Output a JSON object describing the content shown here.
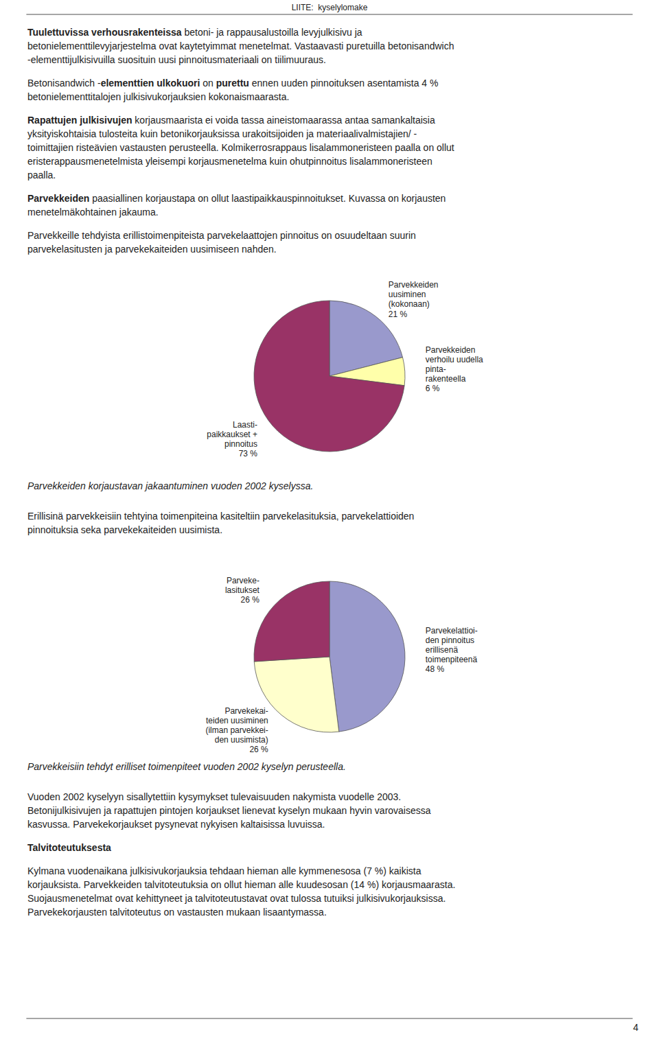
{
  "header": "LIITE:  kyselylomake",
  "page_number": "4",
  "body": [
    [
      [
        [
          {
            "text": "Tuulettuvissa verhousrakenteissa",
            "bold": true
          },
          {
            "text": " betoni- ja rappausalustoilla levyjulkisivu ja"
          }
        ],
        [
          {
            "text": "betonielementtilevyjarjestelma ovat kaytetyimmat menetelmat. Vastaavasti puretuilla betonisandwich"
          }
        ],
        [
          {
            "text": "-elementtijulkisivuilla suosituin uusi pinnoitusmateriaali on tiilimuuraus."
          }
        ]
      ],
      [
        [
          {
            "text": "Betonisandwich -"
          },
          {
            "text": "elementtien ulkokuori",
            "bold": true
          },
          {
            "text": " on "
          },
          {
            "text": "purettu",
            "bold": true
          },
          {
            "text": " ennen uuden pinnoituksen asentamista 4 %"
          }
        ],
        [
          {
            "text": "betonielementtitalojen julkisivukorjauksien kokonaismaarasta."
          }
        ]
      ],
      [
        [
          {
            "text": "Rapattujen julkisivujen",
            "bold": true
          },
          {
            "text": " korjausmaarista ei voida tassa aineistomaarassa antaa samankaltaisia"
          }
        ],
        [
          {
            "text": "yksityiskohtaisia tulosteita kuin betonikorjauksissa urakoitsijoiden ja materiaalivalmistajien/ -"
          }
        ],
        [
          {
            "text": "toimittajien risteävien vastausten perusteella. Kolmikerrosrappaus lisalammoneristeen paalla on ollut"
          }
        ],
        [
          {
            "text": "eristerappausmenetelmista yleisempi korjausmenetelma kuin ohutpinnoitus lisalammoneristeen"
          }
        ],
        [
          {
            "text": "paalla."
          }
        ]
      ],
      [
        [
          {
            "text": "Parvekkeiden",
            "bold": true
          },
          {
            "text": " paasiallinen korjaustapa on ollut laastipaikkauspinnoitukset. Kuvassa on korjausten"
          }
        ],
        [
          {
            "text": "menetelmäkohtainen jakauma."
          }
        ]
      ],
      [
        [
          {
            "text": "Parvekkeille tehdyista erillistoimenpiteista parvekelaattojen pinnoitus on osuudeltaan suurin"
          }
        ],
        [
          {
            "text": "parvekelasitusten ja parvekekaiteiden uusimiseen nahden."
          }
        ]
      ]
    ],
    [
      [
        [
          {
            "text": "Erillisinä parvekkeisiin tehtyina toimenpiteina kasiteltiin parvekelasituksia, parvekelattioiden"
          }
        ],
        [
          {
            "text": "pinnoituksia seka parvekekaiteiden uusimista."
          }
        ]
      ]
    ],
    [
      [
        [
          {
            "text": "Vuoden 2002 kyselyyn sisallytettiin kysymykset tulevaisuuden nakymista vuodelle 2003."
          }
        ],
        [
          {
            "text": "Betonijulkisivujen ja rapattujen pintojen korjaukset lienevat kyselyn mukaan hyvin varovaisessa"
          }
        ],
        [
          {
            "text": "kasvussa. Parvekekorjaukset pysynevat nykyisen kaltaisissa luvuissa."
          }
        ]
      ],
      [
        [
          {
            "text": "Talvitoteutuksesta",
            "bold": true
          }
        ]
      ],
      [
        [
          {
            "text": "Kylmana vuodenaikana julkisivukorjauksia tehdaan hieman alle kymmenesosa (7 %) kaikista"
          }
        ],
        [
          {
            "text": "korjauksista. Parvekkeiden talvitoteutuksia on ollut hieman alle kuudesosan (14 %) korjausmaarasta."
          }
        ],
        [
          {
            "text": "Suojausmenetelmat ovat kehittyneet ja talvitoteutustavat ovat tulossa tutuiksi julkisivukorjauksissa."
          }
        ],
        [
          {
            "text": "Parvekekorjausten talvitoteutus on vastausten mukaan lisaantymassa."
          }
        ]
      ]
    ]
  ],
  "chart_data": [
    {
      "type": "pie",
      "title": "Parvekkeiden korjaustavan jakaantuminen vuoden 2002 kyselyssa.",
      "categories": [
        "Parvekkeiden\nuusiminen\n(kokonaan)",
        "Parvekkeiden\nverhoilu uudella\npinta-\nrakenteella",
        "Laasti-\npaikkaukset +\npinnoitus"
      ],
      "values": [
        21,
        6,
        73
      ],
      "value_labels": [
        "21 %",
        "6 %",
        "73 %"
      ],
      "colors": [
        "#9999cc",
        "#ffffaa",
        "#993366"
      ],
      "data_labels": true
    },
    {
      "type": "pie",
      "title": "Parvekkeisiin tehdyt erilliset toimenpiteet vuoden 2002 kyselyn perusteella.",
      "categories": [
        "Parvekelattioi-\nden pinnoitus\nerillisenä\ntoimenpiteenä",
        "Parvekekai-\nteiden uusiminen\n(ilman parvekkei-\nden uusimista)",
        "Parveke-\nlasitukset"
      ],
      "values": [
        48,
        26,
        26
      ],
      "value_labels": [
        "48 %",
        "26 %",
        "26 %"
      ],
      "colors": [
        "#9999cc",
        "#ffffcc",
        "#993366"
      ],
      "data_labels": true
    }
  ]
}
